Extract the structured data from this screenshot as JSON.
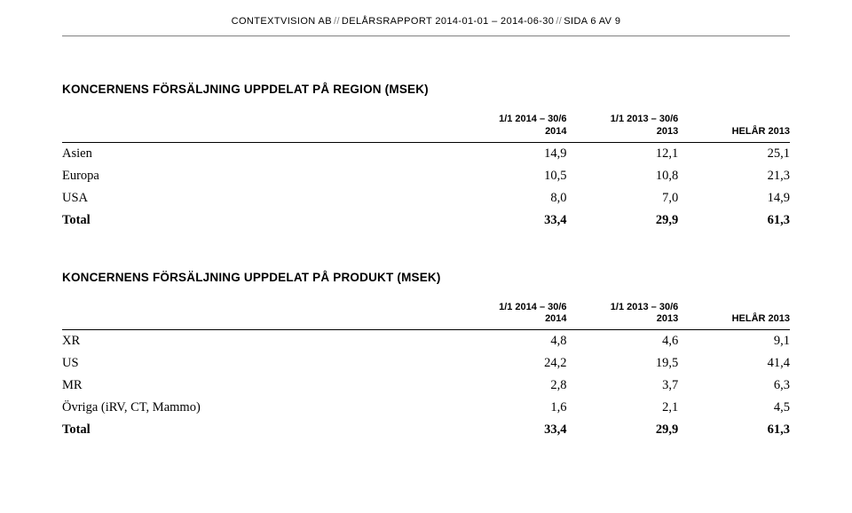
{
  "header": {
    "parts": [
      "CONTEXTVISION AB",
      "DELÅRSRAPPORT 2014-01-01 – 2014-06-30",
      "SIDA 6 AV 9"
    ]
  },
  "tables": [
    {
      "title": "KONCERNENS FÖRSÄLJNING UPPDELAT PÅ REGION (MSEK)",
      "columns": [
        {
          "l1": "",
          "l2": ""
        },
        {
          "l1": "1/1 2014 – 30/6",
          "l2": "2014"
        },
        {
          "l1": "1/1 2013 – 30/6",
          "l2": "2013"
        },
        {
          "l1": "",
          "l2": "HELÅR 2013"
        }
      ],
      "rows": [
        {
          "label": "Asien",
          "values": [
            "14,9",
            "12,1",
            "25,1"
          ]
        },
        {
          "label": "Europa",
          "values": [
            "10,5",
            "10,8",
            "21,3"
          ]
        },
        {
          "label": "USA",
          "values": [
            "8,0",
            "7,0",
            "14,9"
          ]
        }
      ],
      "total": {
        "label": "Total",
        "values": [
          "33,4",
          "29,9",
          "61,3"
        ]
      }
    },
    {
      "title": "KONCERNENS FÖRSÄLJNING UPPDELAT PÅ PRODUKT (MSEK)",
      "columns": [
        {
          "l1": "",
          "l2": ""
        },
        {
          "l1": "1/1 2014 – 30/6",
          "l2": "2014"
        },
        {
          "l1": "1/1 2013 – 30/6",
          "l2": "2013"
        },
        {
          "l1": "",
          "l2": "HELÅR 2013"
        }
      ],
      "rows": [
        {
          "label": "XR",
          "values": [
            "4,8",
            "4,6",
            "9,1"
          ]
        },
        {
          "label": "US",
          "values": [
            "24,2",
            "19,5",
            "41,4"
          ]
        },
        {
          "label": "MR",
          "values": [
            "2,8",
            "3,7",
            "6,3"
          ]
        },
        {
          "label": "Övriga (iRV, CT, Mammo)",
          "values": [
            "1,6",
            "2,1",
            "4,5"
          ]
        }
      ],
      "total": {
        "label": "Total",
        "values": [
          "33,4",
          "29,9",
          "61,3"
        ]
      }
    }
  ]
}
